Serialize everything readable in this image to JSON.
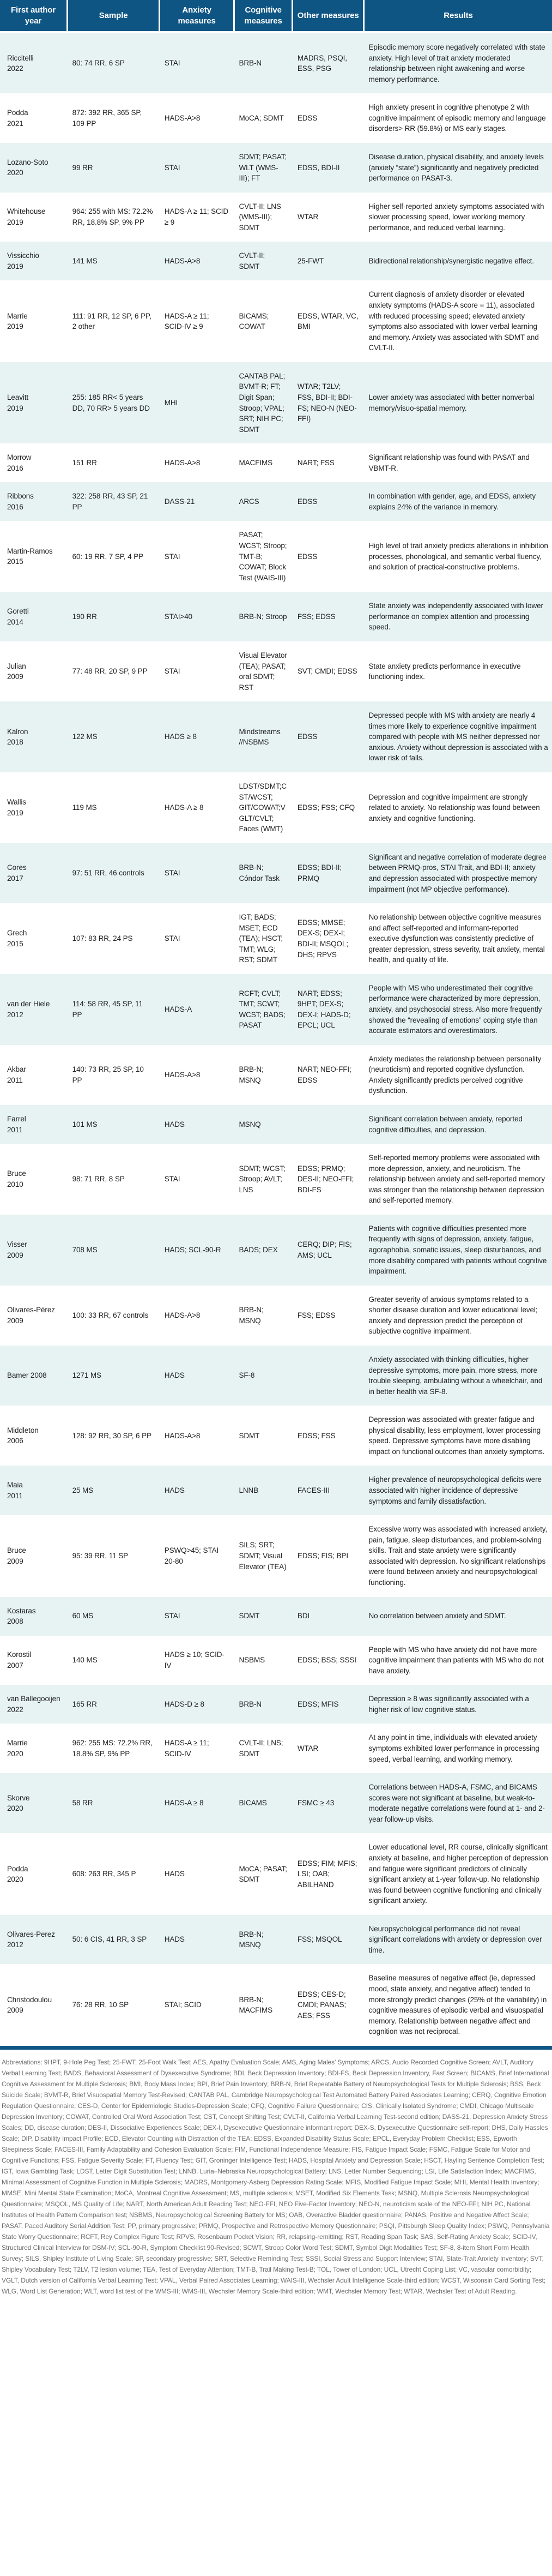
{
  "colors": {
    "header_bg": "#0E5584",
    "row_shade": "#E6F3F2",
    "body_text": "#232323",
    "footnote_text": "#6E6E6E"
  },
  "table": {
    "columns": [
      "First author year",
      "Sample",
      "Anxiety measures",
      "Cognitive measures",
      "Other measures",
      "Results"
    ],
    "rows": [
      {
        "author": "Riccitelli",
        "year": "2022",
        "sample": "80: 74 RR, 6 SP",
        "anxiety": "STAI",
        "cognitive": "BRB-N",
        "other": "MADRS, PSQI, ESS, PSG",
        "results": "Episodic memory score negatively correlated with state anxiety. High level of trait anxiety moderated relationship between night awakening and worse memory performance."
      },
      {
        "author": "Podda",
        "year": "2021",
        "sample": "872: 392 RR, 365 SP, 109 PP",
        "anxiety": "HADS-A>8",
        "cognitive": "MoCA; SDMT",
        "other": "EDSS",
        "results": "High anxiety present in cognitive phenotype 2 with cognitive impairment of episodic memory and language disorders> RR (59.8%) or MS early stages."
      },
      {
        "author": "Lozano-Soto",
        "year": "2020",
        "sample": "99 RR",
        "anxiety": "STAI",
        "cognitive": "SDMT; PASAT; WLT (WMS-III); FT",
        "other": "EDSS, BDI-II",
        "results": "Disease duration, physical disability, and anxiety levels (anxiety “state”) significantly and negatively predicted performance on PASAT-3."
      },
      {
        "author": "Whitehouse",
        "year": "2019",
        "sample": "964: 255 with MS: 72.2% RR, 18.8% SP, 9% PP",
        "anxiety": "HADS-A ≥ 11; SCID ≥ 9",
        "cognitive": "CVLT-II; LNS (WMS-III); SDMT",
        "other": "WTAR",
        "results": "Higher self-reported anxiety symptoms associated with slower processing speed, lower working memory performance, and reduced verbal learning."
      },
      {
        "author": "Vissicchio",
        "year": "2019",
        "sample": "141 MS",
        "anxiety": "HADS-A>8",
        "cognitive": "CVLT-II; SDMT",
        "other": "25-FWT",
        "results": "Bidirectional relationship/synergistic negative effect."
      },
      {
        "author": "Marrie",
        "year": "2019",
        "sample": "111: 91 RR, 12 SP, 6 PP, 2 other",
        "anxiety": "HADS-A ≥ 11; SCID-IV ≥ 9",
        "cognitive": "BICAMS; COWAT",
        "other": "EDSS, WTAR, VC, BMI",
        "results": "Current diagnosis of anxiety disorder or elevated anxiety symptoms (HADS-A score = 11), associated with reduced processing speed; elevated anxiety symptoms also associated with lower verbal learning and memory. Anxiety was associated with SDMT and CVLT-II."
      },
      {
        "author": "Leavitt",
        "year": "2019",
        "sample": "255: 185 RR< 5 years DD, 70 RR> 5 years DD",
        "anxiety": "MHI",
        "cognitive": "CANTAB PAL; BVMT-R; FT; Digit Span; Stroop; VPAL; SRT; NIH PC; SDMT",
        "other": "WTAR; T2LV; FSS, BDI-II; BDI-FS; NEO-N (NEO-FFI)",
        "results": "Lower anxiety was associated with better nonverbal memory/visuo-spatial memory."
      },
      {
        "author": "Morrow",
        "year": "2016",
        "sample": "151 RR",
        "anxiety": "HADS-A>8",
        "cognitive": "MACFIMS",
        "other": "NART; FSS",
        "results": "Significant relationship was found with PASAT and VBMT-R."
      },
      {
        "author": "Ribbons",
        "year": "2016",
        "sample": "322: 258 RR, 43 SP, 21 PP",
        "anxiety": "DASS-21",
        "cognitive": "ARCS",
        "other": "EDSS",
        "results": "In combination with gender, age, and EDSS, anxiety explains 24% of the variance in memory."
      },
      {
        "author": "Martin-Ramos",
        "year": "2015",
        "sample": "60: 19 RR, 7 SP, 4 PP",
        "anxiety": "STAI",
        "cognitive": "PASAT; WCST; Stroop; TMT-B; COWAT; Block Test (WAIS-III)",
        "other": "EDSS",
        "results": "High level of trait anxiety predicts alterations in inhibition processes, phonological, and semantic verbal fluency, and solution of practical-constructive problems."
      },
      {
        "author": "Goretti",
        "year": "2014",
        "sample": "190 RR",
        "anxiety": "STAI>40",
        "cognitive": "BRB-N; Stroop",
        "other": "FSS; EDSS",
        "results": "State anxiety was independently associated with lower performance on complex attention and processing speed."
      },
      {
        "author": "Julian",
        "year": "2009",
        "sample": "77: 48 RR, 20 SP, 9 PP",
        "anxiety": "STAI",
        "cognitive": "Visual Elevator (TEA); PASAT; oral SDMT; RST",
        "other": "SVT; CMDI; EDSS",
        "results": "State anxiety predicts performance in executive functioning index."
      },
      {
        "author": "Kalron",
        "year": "2018",
        "sample": "122 MS",
        "anxiety": "HADS ≥ 8",
        "cognitive": "Mindstreams //NSBMS",
        "other": "EDSS",
        "results": "Depressed people with MS with anxiety are nearly 4 times more likely to experience cognitive impairment compared with people with MS neither depressed nor anxious. Anxiety without depression is associated with a lower risk of falls."
      },
      {
        "author": "Wallis",
        "year": "2019",
        "sample": "119 MS",
        "anxiety": "HADS-A ≥ 8",
        "cognitive": "LDST/SDMT;CST/WCST; GIT/COWAT;VGLT/CVLT; Faces (WMT)",
        "other": "EDSS; FSS; CFQ",
        "results": "Depression and cognitive impairment are strongly related to anxiety. No relationship was found between anxiety and cognitive functioning."
      },
      {
        "author": "Cores",
        "year": "2017",
        "sample": "97: 51 RR, 46 controls",
        "anxiety": "STAI",
        "cognitive": "BRB-N; Cóndor Task",
        "other": "EDSS; BDI-II; PRMQ",
        "results": "Significant and negative correlation of moderate degree between PRMQ-pros, STAI Trait, and BDI-II; anxiety and depression associated with prospective memory impairment (not MP objective performance)."
      },
      {
        "author": "Grech",
        "year": "2015",
        "sample": "107: 83 RR, 24 PS",
        "anxiety": "STAI",
        "cognitive": "IGT; BADS; MSET; ECD (TEA); HSCT; TMT; WLG; RST; SDMT",
        "other": "EDSS; MMSE; DEX-S; DEX-I; BDI-II; MSQOL; DHS; RPVS",
        "results": "No relationship between objective cognitive measures and affect self-reported and informant-reported executive dysfunction was consistently predictive of greater depression, stress severity, trait anxiety, mental health, and quality of life."
      },
      {
        "author": "van der Hiele",
        "year": "2012",
        "sample": "114: 58 RR, 45 SP, 11 PP",
        "anxiety": "HADS-A",
        "cognitive": "RCFT; CVLT; TMT; SCWT; WCST; BADS; PASAT",
        "other": "NART; EDSS; 9HPT; DEX-S; DEX-I; HADS-D; EPCL; UCL",
        "results": "People with MS who underestimated their cognitive performance were characterized by more depression, anxiety, and psychosocial stress. Also more frequently showed the “revealing of emotions” coping style than accurate estimators and overestimators."
      },
      {
        "author": "Akbar",
        "year": "2011",
        "sample": "140: 73 RR, 25 SP, 10 PP",
        "anxiety": "HADS-A>8",
        "cognitive": "BRB-N; MSNQ",
        "other": "NART; NEO-FFI; EDSS",
        "results": "Anxiety mediates the relationship between personality (neuroticism) and reported cognitive dysfunction. Anxiety significantly predicts perceived cognitive dysfunction."
      },
      {
        "author": "Farrel",
        "year": "2011",
        "sample": "101 MS",
        "anxiety": "HADS",
        "cognitive": "MSNQ",
        "other": "",
        "results": "Significant correlation between anxiety, reported cognitive difficulties, and depression."
      },
      {
        "author": "Bruce",
        "year": "2010",
        "sample": "98: 71 RR, 8 SP",
        "anxiety": "STAI",
        "cognitive": "SDMT; WCST; Stroop; AVLT; LNS",
        "other": "EDSS; PRMQ; DES-II; NEO-FFI; BDI-FS",
        "results": "Self-reported memory problems were associated with more depression, anxiety, and neuroticism. The relationship between anxiety and self-reported memory was stronger than the relationship between depression and self-reported memory."
      },
      {
        "author": "Visser",
        "year": "2009",
        "sample": "708 MS",
        "anxiety": "HADS; SCL-90-R",
        "cognitive": "BADS; DEX",
        "other": "CERQ; DIP; FIS; AMS; UCL",
        "results": "Patients with cognitive difficulties presented more frequently with signs of depression, anxiety, fatigue, agoraphobia, somatic issues, sleep disturbances, and more disability compared with patients without cognitive impairment."
      },
      {
        "author": "Olivares-Pérez",
        "year": "2009",
        "sample": "100: 33 RR, 67 controls",
        "anxiety": "HADS-A>8",
        "cognitive": "BRB-N; MSNQ",
        "other": "FSS; EDSS",
        "results": "Greater severity of anxious symptoms related to a shorter disease duration and lower educational level; anxiety and depression predict the perception of subjective cognitive impairment."
      },
      {
        "author": "Bamer 2008",
        "year": "",
        "sample": "1271 MS",
        "anxiety": "HADS",
        "cognitive": "SF-8",
        "other": "",
        "results": "Anxiety associated with thinking difficulties, higher depressive symptoms, more pain, more stress, more trouble sleeping, ambulating without a wheelchair, and in better health via SF-8."
      },
      {
        "author": "Middleton",
        "year": "2006",
        "sample": "128: 92 RR, 30 SP, 6 PP",
        "anxiety": "HADS-A>8",
        "cognitive": "SDMT",
        "other": "EDSS; FSS",
        "results": "Depression was associated with greater fatigue and physical disability, less employment, lower processing speed. Depressive symptoms have more disabling impact on functional outcomes than anxiety symptoms."
      },
      {
        "author": "Maia",
        "year": "2011",
        "sample": "25 MS",
        "anxiety": "HADS",
        "cognitive": "LNNB",
        "other": "FACES-III",
        "results": "Higher prevalence of neuropsychological deficits were associated with higher incidence of depressive symptoms and family dissatisfaction."
      },
      {
        "author": "Bruce",
        "year": "2009",
        "sample": "95: 39 RR, 11 SP",
        "anxiety": "PSWQ>45; STAI 20-80",
        "cognitive": "SILS; SRT; SDMT; Visual Elevator (TEA)",
        "other": "EDSS; FIS; BPI",
        "results": "Excessive worry was associated with increased anxiety, pain, fatigue, sleep disturbances, and problem-solving skills. Trait and state anxiety were significantly associated with depression. No significant relationships were found between anxiety and neuropsychological functioning."
      },
      {
        "author": "Kostaras",
        "year": "2008",
        "sample": "60 MS",
        "anxiety": "STAI",
        "cognitive": "SDMT",
        "other": "BDI",
        "results": "No correlation between anxiety and SDMT."
      },
      {
        "author": "Korostil",
        "year": "2007",
        "sample": "140 MS",
        "anxiety": "HADS ≥ 10; SCID-IV",
        "cognitive": "NSBMS",
        "other": "EDSS; BSS; SSSI",
        "results": "People with MS who have anxiety did not have more cognitive impairment than patients with MS who do not have anxiety."
      },
      {
        "author": "van Ballegooijen",
        "year": "2022",
        "sample": "165 RR",
        "anxiety": "HADS-D ≥ 8",
        "cognitive": "BRB-N",
        "other": "EDSS; MFIS",
        "results": "Depression ≥ 8 was significantly associated with a higher risk of low cognitive status."
      },
      {
        "author": "Marrie",
        "year": "2020",
        "sample": "962: 255 MS: 72.2% RR, 18.8% SP, 9% PP",
        "anxiety": "HADS-A ≥ 11; SCID-IV",
        "cognitive": "CVLT-II; LNS; SDMT",
        "other": "WTAR",
        "results": "At any point in time, individuals with elevated anxiety symptoms exhibited lower performance in processing speed, verbal learning, and working memory."
      },
      {
        "author": "Skorve",
        "year": "2020",
        "sample": "58 RR",
        "anxiety": "HADS-A ≥ 8",
        "cognitive": "BICAMS",
        "other": "FSMC ≥ 43",
        "results": "Correlations between HADS-A, FSMC, and BICAMS scores were not significant at baseline, but weak-to-moderate negative correlations were found at 1- and 2-year follow-up visits."
      },
      {
        "author": "Podda",
        "year": "2020",
        "sample": "608: 263 RR, 345 P",
        "anxiety": "HADS",
        "cognitive": "MoCA; PASAT; SDMT",
        "other": "EDSS; FIM; MFIS; LSI; OAB; ABILHAND",
        "results": "Lower educational level, RR course, clinically significant anxiety at baseline, and higher perception of depression and fatigue were significant predictors of clinically significant anxiety at 1-year follow-up. No relationship was found between cognitive functioning and clinically significant anxiety."
      },
      {
        "author": "Olivares-Perez",
        "year": "2012",
        "sample": "50: 6 CIS, 41 RR, 3 SP",
        "anxiety": "HADS",
        "cognitive": "BRB-N; MSNQ",
        "other": "FSS; MSQOL",
        "results": "Neuropsychological performance did not reveal significant correlations with anxiety or depression over time."
      },
      {
        "author": "Christodoulou",
        "year": "2009",
        "sample": "76: 28 RR, 10 SP",
        "anxiety": "STAI; SCID",
        "cognitive": "BRB-N; MACFIMS",
        "other": "EDSS; CES-D; CMDI; PANAS; AES; FSS",
        "results": "Baseline measures of negative affect (ie, depressed mood, state anxiety, and negative affect) tended to more strongly predict changes (25% of the variability) in cognitive measures of episodic verbal and visuospatial memory. Relationship between negative affect and cognition was not reciprocal."
      }
    ]
  },
  "footnote": {
    "text": "Abbreviations: 9HPT, 9-Hole Peg Test; 25-FWT, 25-Foot Walk Test; AES, Apathy Evaluation Scale; AMS, Aging Males’ Symptoms; ARCS, Audio Recorded Cognitive Screen; AVLT, Auditory Verbal Learning Test; BADS, Behavioral Assessment of Dysexecutive Syndrome; BDI, Beck Depression Inventory; BDI-FS, Beck Depression Inventory, Fast Screen; BICAMS, Brief International Cognitive Assessment for Multiple Sclerosis; BMI, Body Mass Index; BPI, Brief Pain Inventory; BRB-N, Brief Repeatable Battery of Neuropsychological Tests for Multiple Sclerosis; BSS, Beck Suicide Scale; BVMT-R, Brief Visuospatial Memory Test-Revised; CANTAB PAL, Cambridge Neuropsychological Test Automated Battery Paired Associates Learning; CERQ, Cognitive Emotion Regulation Questionnaire; CES-D, Center for Epidemiologic Studies-Depression Scale; CFQ, Cognitive Failure Questionnaire; CIS, Clinically Isolated Syndrome; CMDI, Chicago Multiscale Depression Inventory; COWAT, Controlled Oral Word Association Test; CST, Concept Shifting Test; CVLT-II, California Verbal Learning Test-second edition; DASS-21, Depression Anxiety Stress Scales; DD, disease duration; DES-II, Dissociative Experiences Scale; DEX-I, Dysexecutive Questionnaire informant report; DEX-S, Dysexecutive Questionnaire self-report; DHS, Daily Hassles Scale; DIP, Disability Impact Profile; ECD, Elevator Counting with Distraction of the TEA; EDSS, Expanded Disability Status Scale; EPCL, Everyday Problem Checklist; ESS, Epworth Sleepiness Scale; FACES-III, Family Adaptability and Cohesion Evaluation Scale; FIM, Functional Independence Measure; FIS, Fatigue Impact Scale; FSMC, Fatigue Scale for Motor and Cognitive Functions; FSS, Fatigue Severity Scale; FT, Fluency Test; GIT, Groninger Intelligence Test; HADS, Hospital Anxiety and Depression Scale; HSCT, Hayling Sentence Completion Test; IGT, Iowa Gambling Task; LDST, Letter Digit Substitution Test; LNNB, Luria–Nebraska Neuropsychological Battery; LNS, Letter Number Sequencing; LSI, Life Satisfaction Index; MACFIMS, Minimal Assessment of Cognitive Function in Multiple Sclerosis; MADRS, Montgomery-Asberg Depression Rating Scale; MFIS, Modified Fatigue Impact Scale; MHI, Mental Health Inventory; MMSE, Mini Mental State Examination; MoCA, Montreal Cognitive Assessment; MS, multiple sclerosis; MSET, Modified Six Elements Task; MSNQ, Multiple Sclerosis Neuropsychological Questionnaire; MSQOL, MS Quality of Life; NART, North American Adult Reading Test; NEO-FFI, NEO Five-Factor Inventory; NEO-N, neuroticism scale of the NEO-FFI; NIH PC, National Institutes of Health Pattern Comparison test; NSBMS, Neuropsychological Screening Battery for MS; OAB, Overactive Bladder questionnaire; PANAS, Positive and Negative Affect Scale; PASAT, Paced Auditory Serial Addition Test; PP, primary progressive; PRMQ, Prospective and Retrospective Memory Questionnaire; PSQI, Pittsburgh Sleep Quality Index; PSWQ, Pennsylvania State Worry Questionnaire; RCFT, Rey Complex Figure Test; RPVS, Rosenbaum Pocket Vision; RR, relapsing-remitting; RST, Reading Span Task; SAS, Self-Rating Anxiety Scale; SCID-IV, Structured Clinical Interview for DSM-IV; SCL-90-R, Symptom Checklist 90-Revised; SCWT, Stroop Color Word Test; SDMT, Symbol Digit Modalities Test; SF-8, 8-item Short Form Health Survey; SILS, Shipley Institute of Living Scale; SP, secondary progressive; SRT, Selective Reminding Test; SSSI, Social Stress and Support Interview; STAI, State-Trait Anxiety Inventory; SVT, Shipley Vocabulary Test; T2LV, T2 lesion volume; TEA, Test of Everyday Attention; TMT-B, Trail Making Test-B; TOL, Tower of London; UCL, Utrecht Coping List; VC, vascular comorbidity; VGLT, Dutch version of California Verbal Learning Test; VPAL, Verbal Paired Associates Learning; WAIS-III, Wechsler Adult Intelligence Scale-third edition; WCST, Wisconsin Card Sorting Test; WLG, Word List Generation; WLT, word list test of the WMS-III; WMS-III, Wechsler Memory Scale-third edition; WMT, Wechsler Memory Test; WTAR, Wechsler Test of Adult Reading."
  }
}
